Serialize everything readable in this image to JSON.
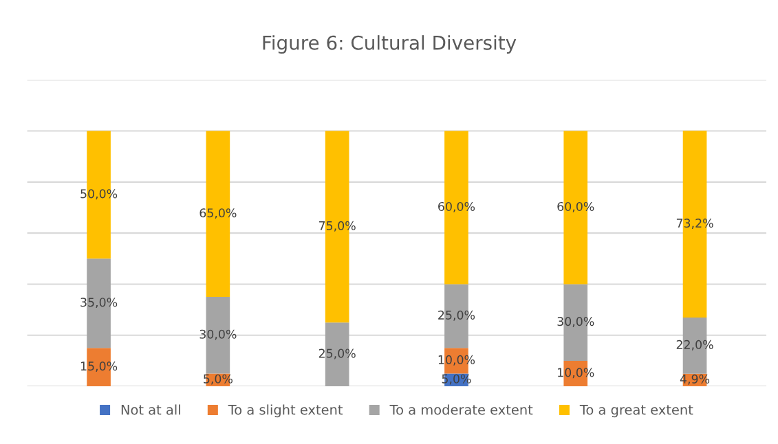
{
  "chart_data": {
    "type": "bar",
    "title": "Figure 6: Cultural Diversity",
    "stacked": true,
    "categories": [
      null,
      null,
      null,
      null,
      null,
      null
    ],
    "series": [
      {
        "name": "Not at all",
        "color": "#4472c4",
        "values": [
          null,
          null,
          null,
          5.0,
          null,
          null
        ],
        "value_labels": [
          null,
          null,
          null,
          "5,0%",
          null,
          null
        ]
      },
      {
        "name": "To a slight extent",
        "color": "#ed7d31",
        "values": [
          15.0,
          5.0,
          null,
          10.0,
          10.0,
          4.9
        ],
        "value_labels": [
          "15,0%",
          "5,0%",
          null,
          "10,0%",
          "10,0%",
          "4,9%"
        ]
      },
      {
        "name": "To a moderate extent",
        "color": "#a5a5a5",
        "values": [
          35.0,
          30.0,
          25.0,
          25.0,
          30.0,
          22.0
        ],
        "value_labels": [
          "35,0%",
          "30,0%",
          "25,0%",
          "25,0%",
          "30,0%",
          "22,0%"
        ]
      },
      {
        "name": "To a great extent",
        "color": "#ffc000",
        "values": [
          50.0,
          65.0,
          75.0,
          60.0,
          60.0,
          73.2
        ],
        "value_labels": [
          "50,0%",
          "65,0%",
          "75,0%",
          "60,0%",
          "60,0%",
          "73,2%"
        ]
      }
    ],
    "ylim": [
      0,
      120
    ],
    "yticks": [
      {
        "value": 0,
        "label": null
      },
      {
        "value": 20,
        "label": null
      },
      {
        "value": 40,
        "label": null
      },
      {
        "value": 60,
        "label": null
      },
      {
        "value": 80,
        "label": null
      },
      {
        "value": 100,
        "label": null
      },
      {
        "value": 120,
        "label": null
      }
    ],
    "grid": "y",
    "legend": "bottom"
  }
}
